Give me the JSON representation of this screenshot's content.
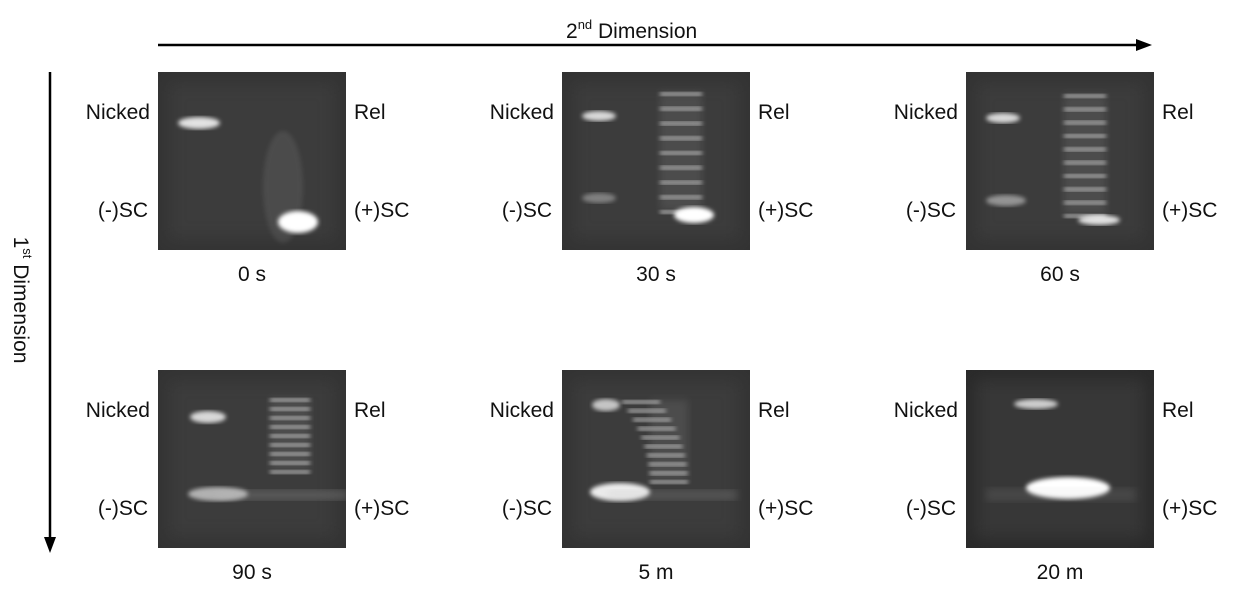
{
  "header": {
    "x_axis": {
      "base": "2",
      "superscript": "nd",
      "text": "Dimension"
    },
    "y_axis": {
      "base": "1",
      "superscript": "st",
      "text": "Dimension"
    }
  },
  "panels": [
    {
      "time": "0 s",
      "top_left": "Nicked",
      "bottom_left": "(-)SC",
      "top_right": "Rel",
      "bottom_right": "(+)SC"
    },
    {
      "time": "30 s",
      "top_left": "Nicked",
      "bottom_left": "(-)SC",
      "top_right": "Rel",
      "bottom_right": "(+)SC"
    },
    {
      "time": "60 s",
      "top_left": "Nicked",
      "bottom_left": "(-)SC",
      "top_right": "Rel",
      "bottom_right": "(+)SC"
    },
    {
      "time": "90 s",
      "top_left": "Nicked",
      "bottom_left": "(-)SC",
      "top_right": "Rel",
      "bottom_right": "(+)SC"
    },
    {
      "time": "5 m",
      "top_left": "Nicked",
      "bottom_left": "(-)SC",
      "top_right": "Rel",
      "bottom_right": "(+)SC"
    },
    {
      "time": "20 m",
      "top_left": "Nicked",
      "bottom_left": "(-)SC",
      "top_right": "Rel",
      "bottom_right": "(+)SC"
    }
  ]
}
